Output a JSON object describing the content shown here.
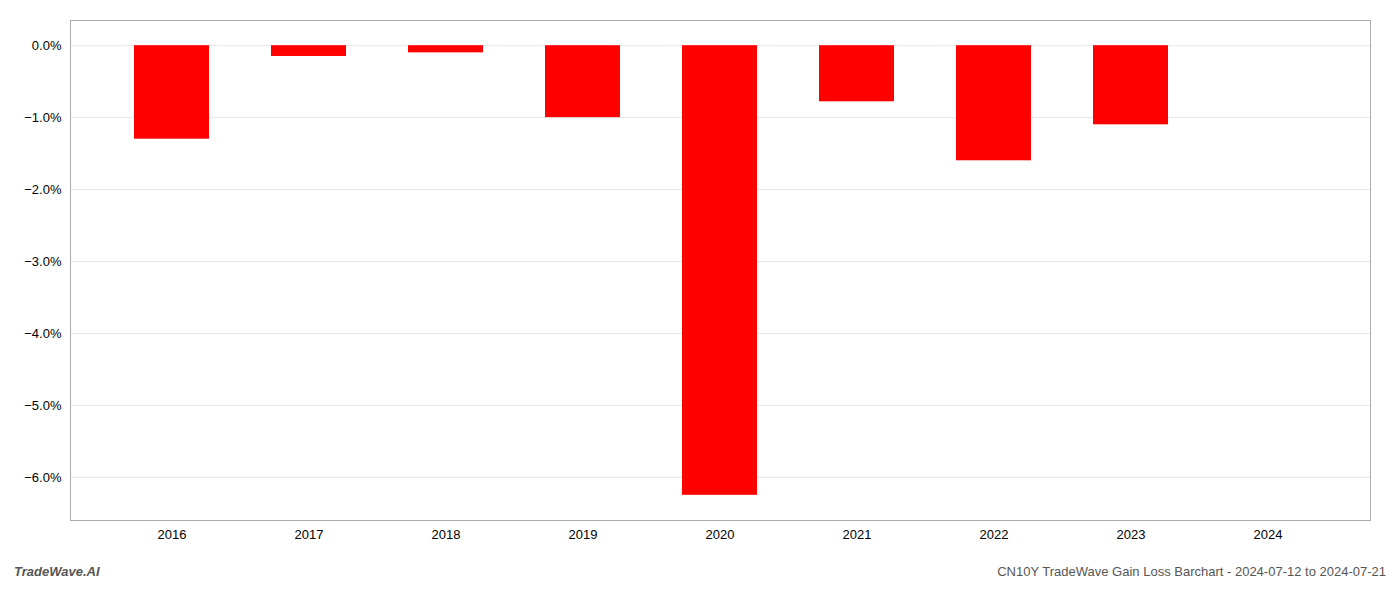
{
  "chart_data": {
    "type": "bar",
    "categories": [
      "2016",
      "2017",
      "2018",
      "2019",
      "2020",
      "2021",
      "2022",
      "2023",
      "2024"
    ],
    "values": [
      -1.3,
      -0.15,
      -0.1,
      -1.0,
      -6.25,
      -0.78,
      -1.6,
      -1.1,
      0.0
    ],
    "color": "#ff0000",
    "ylim": [
      -6.6,
      0.35
    ],
    "yticks": [
      {
        "value": 0.0,
        "label": "0.0%"
      },
      {
        "value": -1.0,
        "label": "−1.0%"
      },
      {
        "value": -2.0,
        "label": "−2.0%"
      },
      {
        "value": -3.0,
        "label": "−3.0%"
      },
      {
        "value": -4.0,
        "label": "−4.0%"
      },
      {
        "value": -5.0,
        "label": "−5.0%"
      },
      {
        "value": -6.0,
        "label": "−6.0%"
      }
    ],
    "grid": true,
    "annotations": [
      "TradeWave.AI",
      "CN10Y TradeWave Gain Loss Barchart - 2024-07-12 to 2024-07-21"
    ]
  }
}
